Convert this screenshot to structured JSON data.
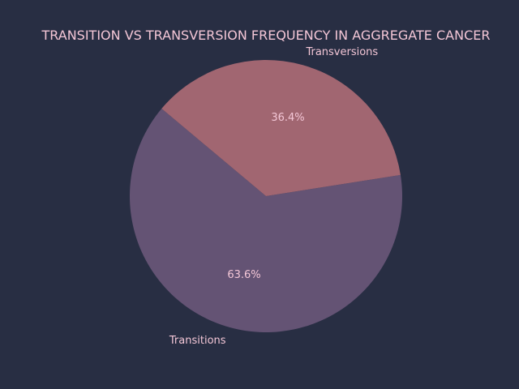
{
  "chart_data": {
    "type": "pie",
    "title": "TRANSITION VS TRANSVERSION FREQUENCY IN AGGREGATE CANCER",
    "categories": [
      "Transitions",
      "Transversions"
    ],
    "values": [
      63.6,
      36.4
    ],
    "value_labels": [
      "63.6%",
      "36.4%"
    ],
    "colors": [
      "#645374",
      "#a16671"
    ],
    "start_angle_deg": 140,
    "direction": "counterclockwise",
    "legend": "none"
  },
  "colors": {
    "background": "#282e43",
    "text": "#f3c6d6"
  }
}
